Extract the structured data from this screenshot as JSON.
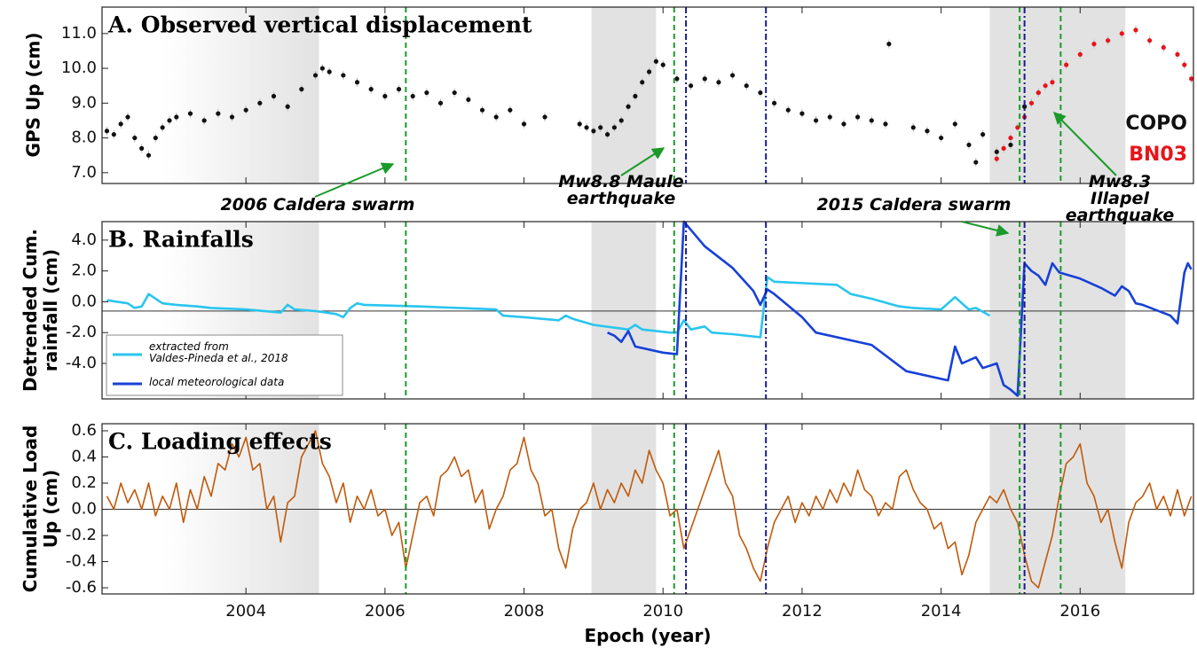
{
  "chart_data": [
    {
      "type": "scatter",
      "title": "A. Observed vertical displacement",
      "ylabel": "GPS Up (cm)",
      "xlim": [
        2001.93,
        2017.63
      ],
      "xticks": [
        2004,
        2006,
        2008,
        2010,
        2012,
        2014,
        2016
      ],
      "ylim": [
        6.69,
        11.76
      ],
      "yticks": [
        {
          "value": 7,
          "label": "7.0"
        },
        {
          "value": 8,
          "label": "8.0"
        },
        {
          "value": 9,
          "label": "9.0"
        },
        {
          "value": 10,
          "label": "10.0"
        },
        {
          "value": 11,
          "label": "11.0"
        }
      ],
      "series": [
        {
          "name": "COPO",
          "color": "#111111",
          "x": [
            2002.0,
            2002.1,
            2002.2,
            2002.3,
            2002.4,
            2002.5,
            2002.6,
            2002.7,
            2002.8,
            2002.9,
            2003.0,
            2003.2,
            2003.4,
            2003.6,
            2003.8,
            2004.0,
            2004.2,
            2004.4,
            2004.6,
            2004.8,
            2005.0,
            2005.1,
            2005.2,
            2005.4,
            2005.6,
            2005.8,
            2006.0,
            2006.2,
            2006.4,
            2006.6,
            2006.8,
            2007.0,
            2007.2,
            2007.4,
            2007.6,
            2007.8,
            2008.0,
            2008.3,
            2008.8,
            2008.9,
            2009.0,
            2009.1,
            2009.2,
            2009.3,
            2009.4,
            2009.5,
            2009.6,
            2009.7,
            2009.8,
            2009.9,
            2010.0,
            2010.2,
            2010.4,
            2010.6,
            2010.8,
            2011.0,
            2011.2,
            2011.4,
            2011.6,
            2011.8,
            2012.0,
            2012.2,
            2012.4,
            2012.6,
            2012.8,
            2013.0,
            2013.2,
            2013.25,
            2013.6,
            2013.8,
            2014.0,
            2014.2,
            2014.4,
            2014.5,
            2014.6,
            2014.8,
            2015.0,
            2015.2,
            2015.4
          ],
          "values": [
            8.2,
            8.1,
            8.4,
            8.6,
            8.0,
            7.7,
            7.5,
            8.0,
            8.3,
            8.5,
            8.6,
            8.7,
            8.5,
            8.7,
            8.6,
            8.8,
            9.0,
            9.2,
            8.9,
            9.4,
            9.8,
            10.0,
            9.9,
            9.8,
            9.6,
            9.4,
            9.2,
            9.4,
            9.2,
            9.3,
            9.0,
            9.3,
            9.1,
            8.8,
            8.6,
            8.8,
            8.4,
            8.6,
            8.4,
            8.3,
            8.2,
            8.3,
            8.1,
            8.3,
            8.5,
            8.9,
            9.2,
            9.6,
            9.9,
            10.2,
            10.1,
            9.7,
            9.5,
            9.7,
            9.6,
            9.8,
            9.5,
            9.3,
            9.0,
            8.8,
            8.7,
            8.5,
            8.6,
            8.4,
            8.6,
            8.5,
            8.4,
            10.7,
            8.3,
            8.2,
            8.0,
            8.4,
            7.8,
            7.3,
            8.1,
            7.6,
            7.8,
            8.9,
            9.3
          ]
        },
        {
          "name": "BN03",
          "color": "#e8141a",
          "x": [
            2014.8,
            2014.9,
            2015.0,
            2015.1,
            2015.2,
            2015.3,
            2015.4,
            2015.5,
            2015.6,
            2015.8,
            2016.0,
            2016.2,
            2016.4,
            2016.6,
            2016.8,
            2017.0,
            2017.2,
            2017.4,
            2017.5,
            2017.6
          ],
          "values": [
            7.4,
            7.7,
            8.0,
            8.3,
            8.6,
            9.0,
            9.3,
            9.5,
            9.6,
            10.1,
            10.4,
            10.7,
            10.8,
            11.0,
            11.1,
            10.8,
            10.6,
            10.4,
            10.1,
            9.7
          ]
        }
      ],
      "spans": [
        [
          2002.8,
          2005.05
        ],
        [
          2008.97,
          2009.9
        ],
        [
          2014.7,
          2016.65
        ]
      ],
      "vlines": [
        {
          "x": 2006.3,
          "color": "#1a9a2a",
          "style": "dashed"
        },
        {
          "x": 2010.16,
          "color": "#1a9a2a",
          "style": "dashed"
        },
        {
          "x": 2015.13,
          "color": "#1a9a2a",
          "style": "dashed"
        },
        {
          "x": 2015.72,
          "color": "#1a9a2a",
          "style": "dashed"
        },
        {
          "x": 2010.33,
          "color": "#1a1a8c",
          "style": "dashdot"
        },
        {
          "x": 2011.48,
          "color": "#1a1a8c",
          "style": "dashdot"
        },
        {
          "x": 2015.2,
          "color": "#1a1a8c",
          "style": "dashdot"
        }
      ],
      "annotations": [
        "2006 Caldera swarm",
        "Mw8.8 Maule\nearthquake",
        "2015 Caldera swarm",
        "Mw8.3 Illapel\nearthquake"
      ]
    },
    {
      "type": "line",
      "title": "B. Rainfalls",
      "ylabel": "Detrended Cum.\nrainfall (cm)",
      "xlim": [
        2001.93,
        2017.63
      ],
      "xticks": [
        2004,
        2006,
        2008,
        2010,
        2012,
        2014,
        2016
      ],
      "ylim": [
        -6.3,
        5.2
      ],
      "yticks": [
        {
          "value": 4,
          "label": "4.0"
        },
        {
          "value": 2,
          "label": "2.0"
        },
        {
          "value": 0,
          "label": "0.0"
        },
        {
          "value": -2,
          "label": "-2.0"
        },
        {
          "value": -4,
          "label": "-4.0"
        }
      ],
      "hline": -0.6,
      "series": [
        {
          "name": "extracted from\nValdes-Pineda et al., 2018",
          "color": "#29c5ef",
          "x": [
            2002.0,
            2002.3,
            2002.4,
            2002.5,
            2002.6,
            2002.8,
            2003.0,
            2003.3,
            2003.5,
            2004.0,
            2004.5,
            2004.6,
            2004.7,
            2005.0,
            2005.3,
            2005.4,
            2005.5,
            2005.6,
            2005.7,
            2006.5,
            2007.6,
            2007.7,
            2008.0,
            2008.5,
            2008.6,
            2008.7,
            2009.0,
            2009.5,
            2009.6,
            2009.7,
            2010.1,
            2010.2,
            2010.3,
            2010.4,
            2010.6,
            2010.7,
            2011.0,
            2011.4,
            2011.5,
            2011.6,
            2012.5,
            2012.7,
            2013.0,
            2013.4,
            2013.6,
            2014.0,
            2014.2,
            2014.4,
            2014.5,
            2014.7
          ],
          "values": [
            0.1,
            -0.1,
            -0.4,
            -0.3,
            0.5,
            -0.1,
            -0.2,
            -0.3,
            -0.4,
            -0.5,
            -0.7,
            -0.2,
            -0.5,
            -0.6,
            -0.8,
            -1.0,
            -0.4,
            -0.1,
            -0.2,
            -0.3,
            -0.5,
            -0.9,
            -1.0,
            -1.2,
            -0.9,
            -1.1,
            -1.5,
            -1.8,
            -1.5,
            -1.8,
            -2.0,
            -2.0,
            -1.2,
            -1.8,
            -1.6,
            -2.0,
            -2.1,
            -2.3,
            1.6,
            1.3,
            1.1,
            0.5,
            0.2,
            -0.3,
            -0.4,
            -0.5,
            0.3,
            -0.5,
            -0.4,
            -0.9
          ]
        },
        {
          "name": "local meteorological data",
          "color": "#1740d8",
          "x": [
            2009.2,
            2009.3,
            2009.4,
            2009.5,
            2009.6,
            2010.0,
            2010.2,
            2010.3,
            2010.6,
            2011.0,
            2011.3,
            2011.4,
            2011.5,
            2011.6,
            2012.0,
            2012.2,
            2013.0,
            2013.5,
            2014.0,
            2014.1,
            2014.2,
            2014.3,
            2014.5,
            2014.6,
            2014.8,
            2014.9,
            2015.0,
            2015.1,
            2015.2,
            2015.3,
            2015.4,
            2015.5,
            2015.6,
            2015.7,
            2016.0,
            2016.3,
            2016.5,
            2016.6,
            2016.7,
            2016.8,
            2016.9,
            2017.3,
            2017.4,
            2017.5,
            2017.55,
            2017.6
          ],
          "values": [
            -2.0,
            -2.2,
            -2.6,
            -1.9,
            -2.9,
            -3.3,
            -3.4,
            5.2,
            3.6,
            2.2,
            0.7,
            -0.2,
            0.8,
            0.5,
            -1.0,
            -2.0,
            -2.8,
            -4.5,
            -5.0,
            -5.1,
            -2.9,
            -4.0,
            -3.6,
            -4.3,
            -4.0,
            -5.4,
            -5.7,
            -6.1,
            2.5,
            2.0,
            1.7,
            1.1,
            2.5,
            1.9,
            1.5,
            0.9,
            0.4,
            1.0,
            0.7,
            -0.1,
            -0.2,
            -0.9,
            -1.4,
            1.9,
            2.5,
            2.1
          ]
        }
      ]
    },
    {
      "type": "line",
      "title": "C. Loading effects",
      "ylabel": "Cumulative Load\nUp (cm)",
      "xlabel": "Epoch (year)",
      "xlim": [
        2001.93,
        2017.63
      ],
      "xticks": [
        2004,
        2006,
        2008,
        2010,
        2012,
        2014,
        2016
      ],
      "ylim": [
        -0.647,
        0.654
      ],
      "yticks": [
        0.6,
        0.4,
        0.2,
        {
          "value": 0,
          "label": "0.0"
        },
        -0.2,
        -0.4,
        -0.6
      ],
      "hline": 0,
      "series": [
        {
          "name": "Cumulative load",
          "color": "#c05a0b",
          "x": [
            2002.0,
            2002.1,
            2002.2,
            2002.3,
            2002.4,
            2002.5,
            2002.6,
            2002.7,
            2002.8,
            2002.9,
            2003.0,
            2003.1,
            2003.2,
            2003.3,
            2003.4,
            2003.5,
            2003.6,
            2003.7,
            2003.8,
            2003.9,
            2004.0,
            2004.1,
            2004.2,
            2004.3,
            2004.4,
            2004.5,
            2004.6,
            2004.7,
            2004.8,
            2004.9,
            2005.0,
            2005.1,
            2005.2,
            2005.3,
            2005.4,
            2005.5,
            2005.6,
            2005.7,
            2005.8,
            2005.9,
            2006.0,
            2006.1,
            2006.2,
            2006.3,
            2006.4,
            2006.5,
            2006.6,
            2006.7,
            2006.8,
            2006.9,
            2007.0,
            2007.1,
            2007.2,
            2007.3,
            2007.4,
            2007.5,
            2007.6,
            2007.7,
            2007.8,
            2007.9,
            2008.0,
            2008.1,
            2008.2,
            2008.3,
            2008.4,
            2008.5,
            2008.6,
            2008.7,
            2008.8,
            2008.9,
            2009.0,
            2009.1,
            2009.2,
            2009.3,
            2009.4,
            2009.5,
            2009.6,
            2009.7,
            2009.8,
            2009.9,
            2010.0,
            2010.1,
            2010.2,
            2010.3,
            2010.4,
            2010.5,
            2010.6,
            2010.7,
            2010.8,
            2010.9,
            2011.0,
            2011.1,
            2011.2,
            2011.3,
            2011.4,
            2011.5,
            2011.6,
            2011.7,
            2011.8,
            2011.9,
            2012.0,
            2012.1,
            2012.2,
            2012.3,
            2012.4,
            2012.5,
            2012.6,
            2012.7,
            2012.8,
            2012.9,
            2013.0,
            2013.1,
            2013.2,
            2013.3,
            2013.4,
            2013.5,
            2013.6,
            2013.7,
            2013.8,
            2013.9,
            2014.0,
            2014.1,
            2014.2,
            2014.3,
            2014.4,
            2014.5,
            2014.6,
            2014.7,
            2014.8,
            2014.9,
            2015.0,
            2015.1,
            2015.2,
            2015.3,
            2015.4,
            2015.5,
            2015.6,
            2015.7,
            2015.8,
            2015.9,
            2016.0,
            2016.1,
            2016.2,
            2016.3,
            2016.4,
            2016.5,
            2016.6,
            2016.7,
            2016.8,
            2016.9,
            2017.0,
            2017.1,
            2017.2,
            2017.3,
            2017.4,
            2017.5,
            2017.6
          ],
          "values": [
            0.1,
            0.0,
            0.2,
            0.05,
            0.15,
            0.0,
            0.2,
            -0.05,
            0.1,
            0.0,
            0.2,
            -0.1,
            0.15,
            0.0,
            0.25,
            0.1,
            0.35,
            0.3,
            0.5,
            0.4,
            0.55,
            0.3,
            0.35,
            0.0,
            0.1,
            -0.25,
            0.05,
            0.1,
            0.4,
            0.5,
            0.6,
            0.35,
            0.25,
            0.05,
            0.2,
            -0.1,
            0.1,
            0.0,
            0.15,
            -0.05,
            0.0,
            -0.2,
            -0.1,
            -0.45,
            -0.2,
            0.05,
            0.1,
            -0.05,
            0.25,
            0.3,
            0.4,
            0.25,
            0.3,
            0.05,
            0.15,
            -0.15,
            0.0,
            0.1,
            0.3,
            0.35,
            0.55,
            0.3,
            0.2,
            -0.05,
            0.0,
            -0.3,
            -0.45,
            -0.15,
            0.0,
            0.05,
            0.2,
            0.0,
            0.15,
            0.05,
            0.2,
            0.1,
            0.3,
            0.2,
            0.45,
            0.3,
            0.2,
            -0.05,
            0.0,
            -0.3,
            -0.15,
            0.0,
            0.15,
            0.3,
            0.45,
            0.2,
            0.1,
            -0.2,
            -0.3,
            -0.45,
            -0.55,
            -0.3,
            -0.1,
            0.0,
            0.1,
            -0.1,
            0.05,
            -0.05,
            0.1,
            0.0,
            0.15,
            0.05,
            0.2,
            0.1,
            0.3,
            0.15,
            0.1,
            -0.05,
            0.05,
            0.0,
            0.25,
            0.3,
            0.15,
            0.05,
            0.0,
            -0.15,
            -0.1,
            -0.3,
            -0.25,
            -0.5,
            -0.35,
            -0.1,
            0.0,
            0.1,
            0.05,
            0.15,
            0.0,
            -0.1,
            -0.35,
            -0.55,
            -0.6,
            -0.4,
            -0.2,
            0.1,
            0.35,
            0.4,
            0.5,
            0.2,
            0.1,
            -0.1,
            0.0,
            -0.25,
            -0.45,
            -0.1,
            0.05,
            0.1,
            0.2,
            0.0,
            0.1,
            -0.05,
            0.15,
            -0.05,
            0.1
          ]
        }
      ]
    }
  ]
}
